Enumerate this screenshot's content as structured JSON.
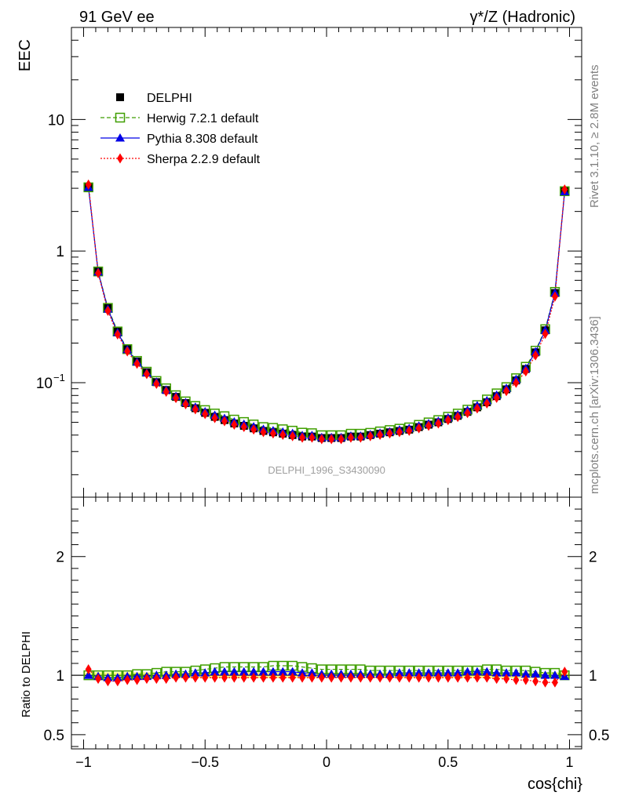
{
  "header": {
    "left": "91 GeV ee",
    "right_main": "γ*/Z (Hadronic)"
  },
  "side_text": {
    "upper": "Rivet 3.1.10, ≥ 2.8M events",
    "lower": "mcplots.cern.ch [arXiv:1306.3436]"
  },
  "watermark": "DELPHI_1996_S3430090",
  "colors": {
    "data": "#000000",
    "herwig": "#3f9e00",
    "pythia": "#0000e6",
    "sherpa": "#ff0000",
    "band": "#ffff80"
  },
  "chart_data": [
    {
      "type": "line",
      "panel": "main",
      "ylabel": "EEC",
      "yscale": "log",
      "xlim": [
        -1.05,
        1.05
      ],
      "ylim": [
        0.0135,
        50
      ],
      "ytick_labels": [
        "10",
        "1",
        "10^-1"
      ],
      "legend_placement": "top-left",
      "series": [
        {
          "name": "DELPHI",
          "marker": "square",
          "x": [
            -0.98,
            -0.94,
            -0.9,
            -0.86,
            -0.82,
            -0.78,
            -0.74,
            -0.7,
            -0.66,
            -0.62,
            -0.58,
            -0.54,
            -0.5,
            -0.46,
            -0.42,
            -0.38,
            -0.34,
            -0.3,
            -0.26,
            -0.22,
            -0.18,
            -0.14,
            -0.1,
            -0.06,
            -0.02,
            0.02,
            0.06,
            0.1,
            0.14,
            0.18,
            0.22,
            0.26,
            0.3,
            0.34,
            0.38,
            0.42,
            0.46,
            0.5,
            0.54,
            0.58,
            0.62,
            0.66,
            0.7,
            0.74,
            0.78,
            0.82,
            0.86,
            0.9,
            0.94,
            0.98
          ],
          "values": [
            3.05,
            0.7,
            0.37,
            0.245,
            0.18,
            0.145,
            0.12,
            0.101,
            0.088,
            0.078,
            0.07,
            0.064,
            0.059,
            0.055,
            0.052,
            0.049,
            0.047,
            0.045,
            0.043,
            0.042,
            0.041,
            0.04,
            0.039,
            0.039,
            0.038,
            0.038,
            0.038,
            0.039,
            0.039,
            0.04,
            0.041,
            0.042,
            0.043,
            0.044,
            0.046,
            0.048,
            0.05,
            0.053,
            0.056,
            0.06,
            0.065,
            0.071,
            0.079,
            0.089,
            0.104,
            0.127,
            0.17,
            0.25,
            0.48,
            2.85
          ]
        },
        {
          "name": "Herwig 7.2.1 default",
          "marker": "open-square",
          "line": "dashed",
          "ratio": [
            1.0,
            1.0,
            1.0,
            1.0,
            1.0,
            1.01,
            1.01,
            1.02,
            1.03,
            1.03,
            1.03,
            1.04,
            1.05,
            1.06,
            1.07,
            1.07,
            1.07,
            1.07,
            1.07,
            1.08,
            1.08,
            1.08,
            1.07,
            1.06,
            1.05,
            1.05,
            1.05,
            1.05,
            1.05,
            1.04,
            1.04,
            1.04,
            1.04,
            1.04,
            1.04,
            1.04,
            1.04,
            1.04,
            1.04,
            1.04,
            1.04,
            1.05,
            1.05,
            1.04,
            1.04,
            1.04,
            1.03,
            1.02,
            1.02,
            1.0
          ]
        },
        {
          "name": "Pythia 8.308 default",
          "marker": "triangle",
          "line": "solid",
          "ratio": [
            1.0,
            0.99,
            0.98,
            0.98,
            0.99,
            0.99,
            0.99,
            1.0,
            1.0,
            1.01,
            1.01,
            1.02,
            1.02,
            1.03,
            1.03,
            1.03,
            1.03,
            1.03,
            1.03,
            1.03,
            1.03,
            1.03,
            1.02,
            1.02,
            1.01,
            1.01,
            1.01,
            1.01,
            1.01,
            1.01,
            1.01,
            1.01,
            1.02,
            1.02,
            1.02,
            1.02,
            1.02,
            1.02,
            1.02,
            1.03,
            1.03,
            1.03,
            1.02,
            1.02,
            1.02,
            1.01,
            1.01,
            1.0,
            1.0,
            0.99
          ]
        },
        {
          "name": "Sherpa 2.2.9 default",
          "marker": "diamond",
          "line": "dotted",
          "ratio": [
            1.05,
            0.97,
            0.95,
            0.95,
            0.96,
            0.96,
            0.97,
            0.97,
            0.97,
            0.98,
            0.98,
            0.98,
            0.98,
            0.98,
            0.98,
            0.98,
            0.98,
            0.98,
            0.98,
            0.98,
            0.98,
            0.98,
            0.98,
            0.98,
            0.98,
            0.98,
            0.98,
            0.98,
            0.98,
            0.98,
            0.98,
            0.98,
            0.98,
            0.98,
            0.98,
            0.98,
            0.98,
            0.98,
            0.98,
            0.98,
            0.98,
            0.98,
            0.97,
            0.97,
            0.96,
            0.96,
            0.95,
            0.94,
            0.94,
            1.03
          ]
        }
      ]
    },
    {
      "type": "line",
      "panel": "ratio",
      "xlabel": "cos{chi}",
      "ylabel": "Ratio to DELPHI",
      "xlim": [
        -1.05,
        1.05
      ],
      "ylim": [
        0.38,
        2.5
      ],
      "xticks": [
        -1,
        -0.5,
        0,
        0.5,
        1
      ],
      "xtick_labels": [
        "−1",
        "−0.5",
        "0",
        "0.5",
        "1"
      ],
      "yticks": [
        0.5,
        1,
        2
      ],
      "ytick_labels": [
        "0.5",
        "1",
        "2"
      ]
    }
  ]
}
